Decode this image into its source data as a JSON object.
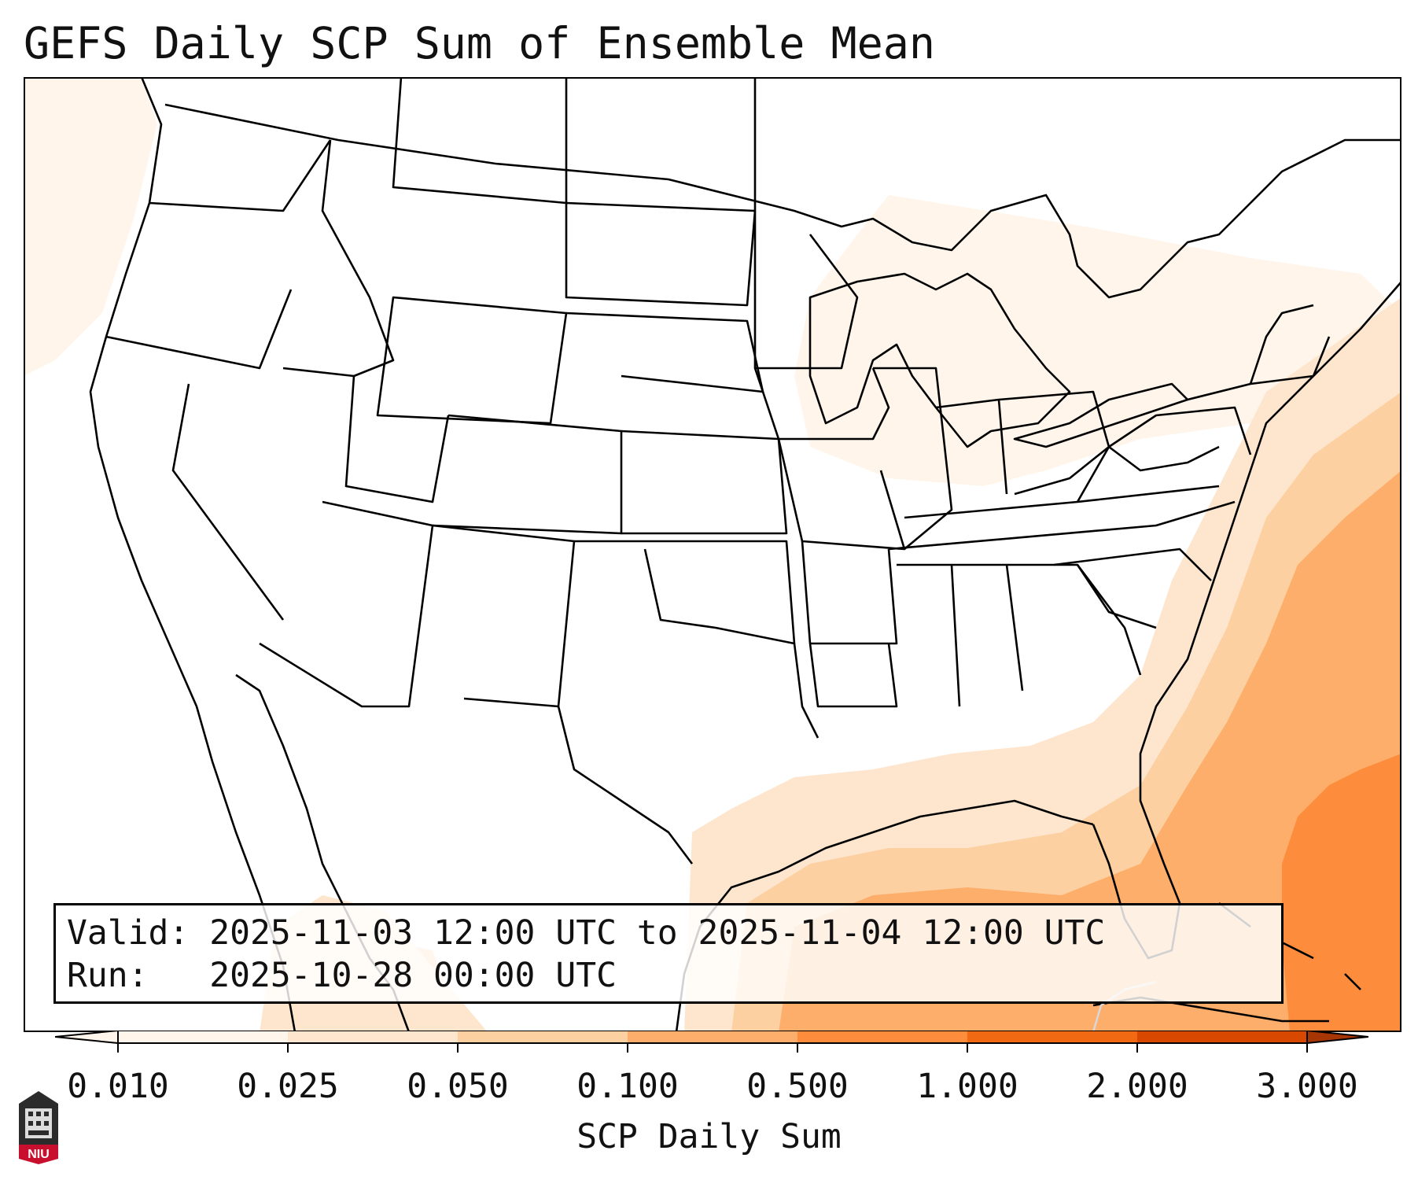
{
  "title": "GEFS Daily SCP Sum of Ensemble Mean",
  "info": {
    "valid_label": "Valid:",
    "valid_value": "2025-11-03 12:00 UTC to 2025-11-04 12:00 UTC",
    "run_label": "Run:",
    "run_value": "2025-10-28 00:00 UTC"
  },
  "colorbar": {
    "label": "SCP Daily Sum",
    "ticks": [
      "0.010",
      "0.025",
      "0.050",
      "0.100",
      "0.500",
      "1.000",
      "2.000",
      "3.000"
    ],
    "colors": [
      "#fff5eb",
      "#fee6ce",
      "#fdd0a2",
      "#fdae6b",
      "#fd8d3c",
      "#f16913",
      "#d94801"
    ]
  },
  "logo": {
    "text": "NIU"
  },
  "colors": {
    "shade_light": "#fff5eb",
    "shade_mid": "#fee6ce",
    "shade_peach": "#fdd0a2",
    "shade_orange": "#fdae6b",
    "shade_deep": "#fd8d3c"
  }
}
